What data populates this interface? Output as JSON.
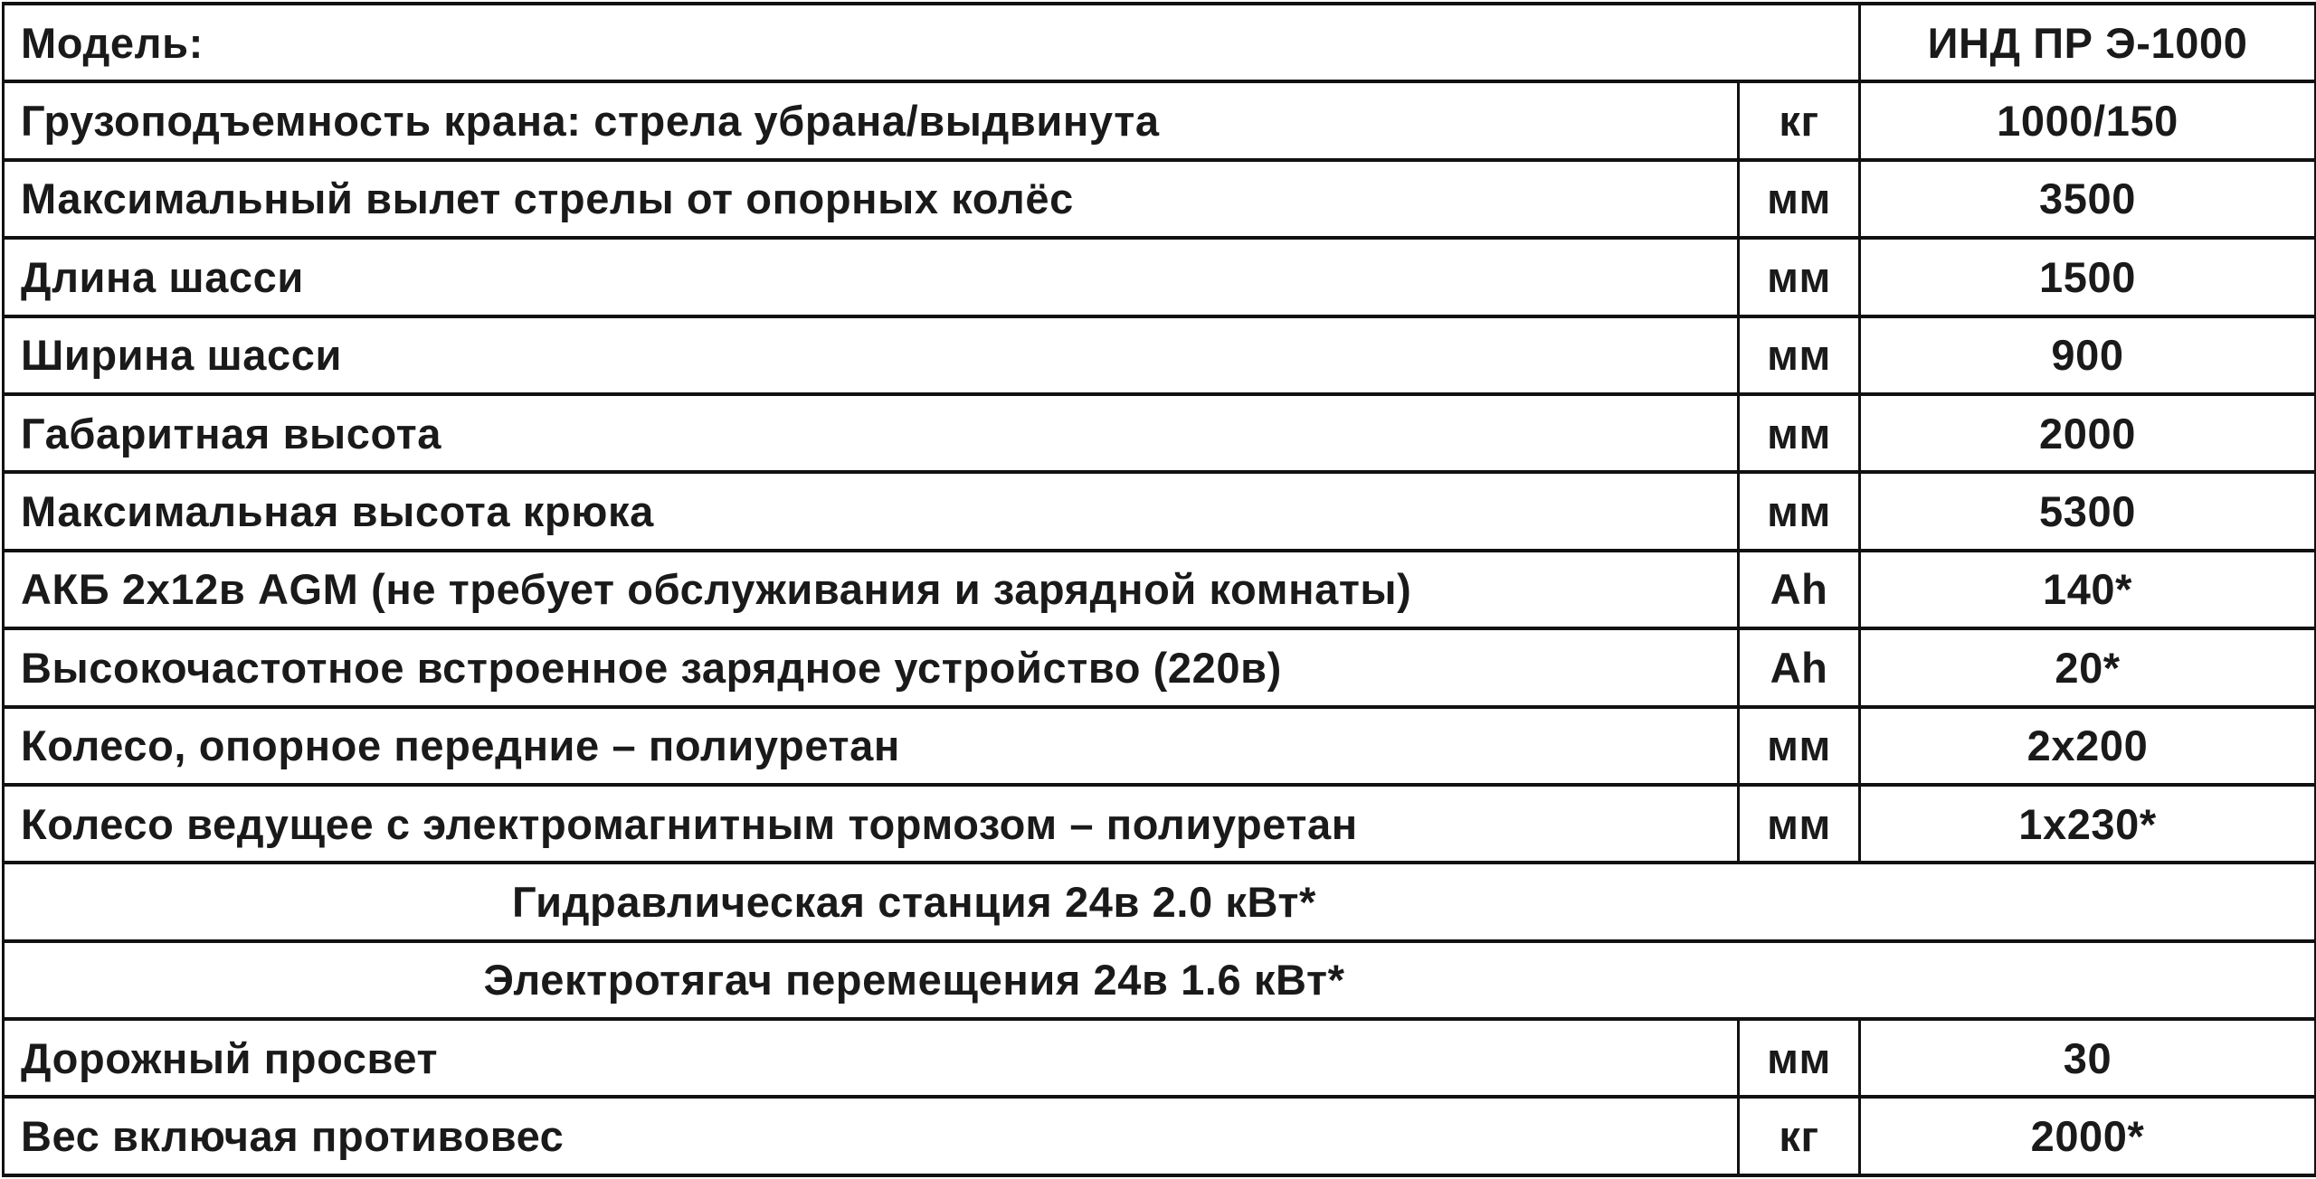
{
  "header": {
    "label": "Модель:",
    "model": "ИНД ПР Э-1000"
  },
  "rows": [
    {
      "param": "Грузоподъемность крана: стрела убрана/выдвинута",
      "unit": "кг",
      "value": "1000/150"
    },
    {
      "param": "Максимальный вылет стрелы от опорных колёс",
      "unit": "мм",
      "value": "3500"
    },
    {
      "param": "Длина шасси",
      "unit": "мм",
      "value": "1500"
    },
    {
      "param": "Ширина шасси",
      "unit": "мм",
      "value": "900"
    },
    {
      "param": "Габаритная высота",
      "unit": "мм",
      "value": "2000"
    },
    {
      "param": "Максимальная высота крюка",
      "unit": "мм",
      "value": "5300"
    },
    {
      "param": "АКБ 2х12в AGM (не требует обслуживания и зарядной комнаты)",
      "unit": "Ah",
      "value": "140*"
    },
    {
      "param": "Высокочастотное встроенное зарядное устройство (220в)",
      "unit": "Ah",
      "value": "20*"
    },
    {
      "param": "Колесо, опорное передние – полиуретан",
      "unit": "мм",
      "value": "2х200"
    },
    {
      "param": "Колесо ведущее с электромагнитным тормозом – полиуретан",
      "unit": "мм",
      "value": "1х230*"
    }
  ],
  "spans": [
    "Гидравлическая станция 24в 2.0 кВт*",
    "Электротягач перемещения 24в 1.6 кВт*"
  ],
  "tail_rows": [
    {
      "param": "Дорожный просвет",
      "unit": "мм",
      "value": "30"
    },
    {
      "param": "Вес включая противовес",
      "unit": "кг",
      "value": "2000*"
    }
  ]
}
